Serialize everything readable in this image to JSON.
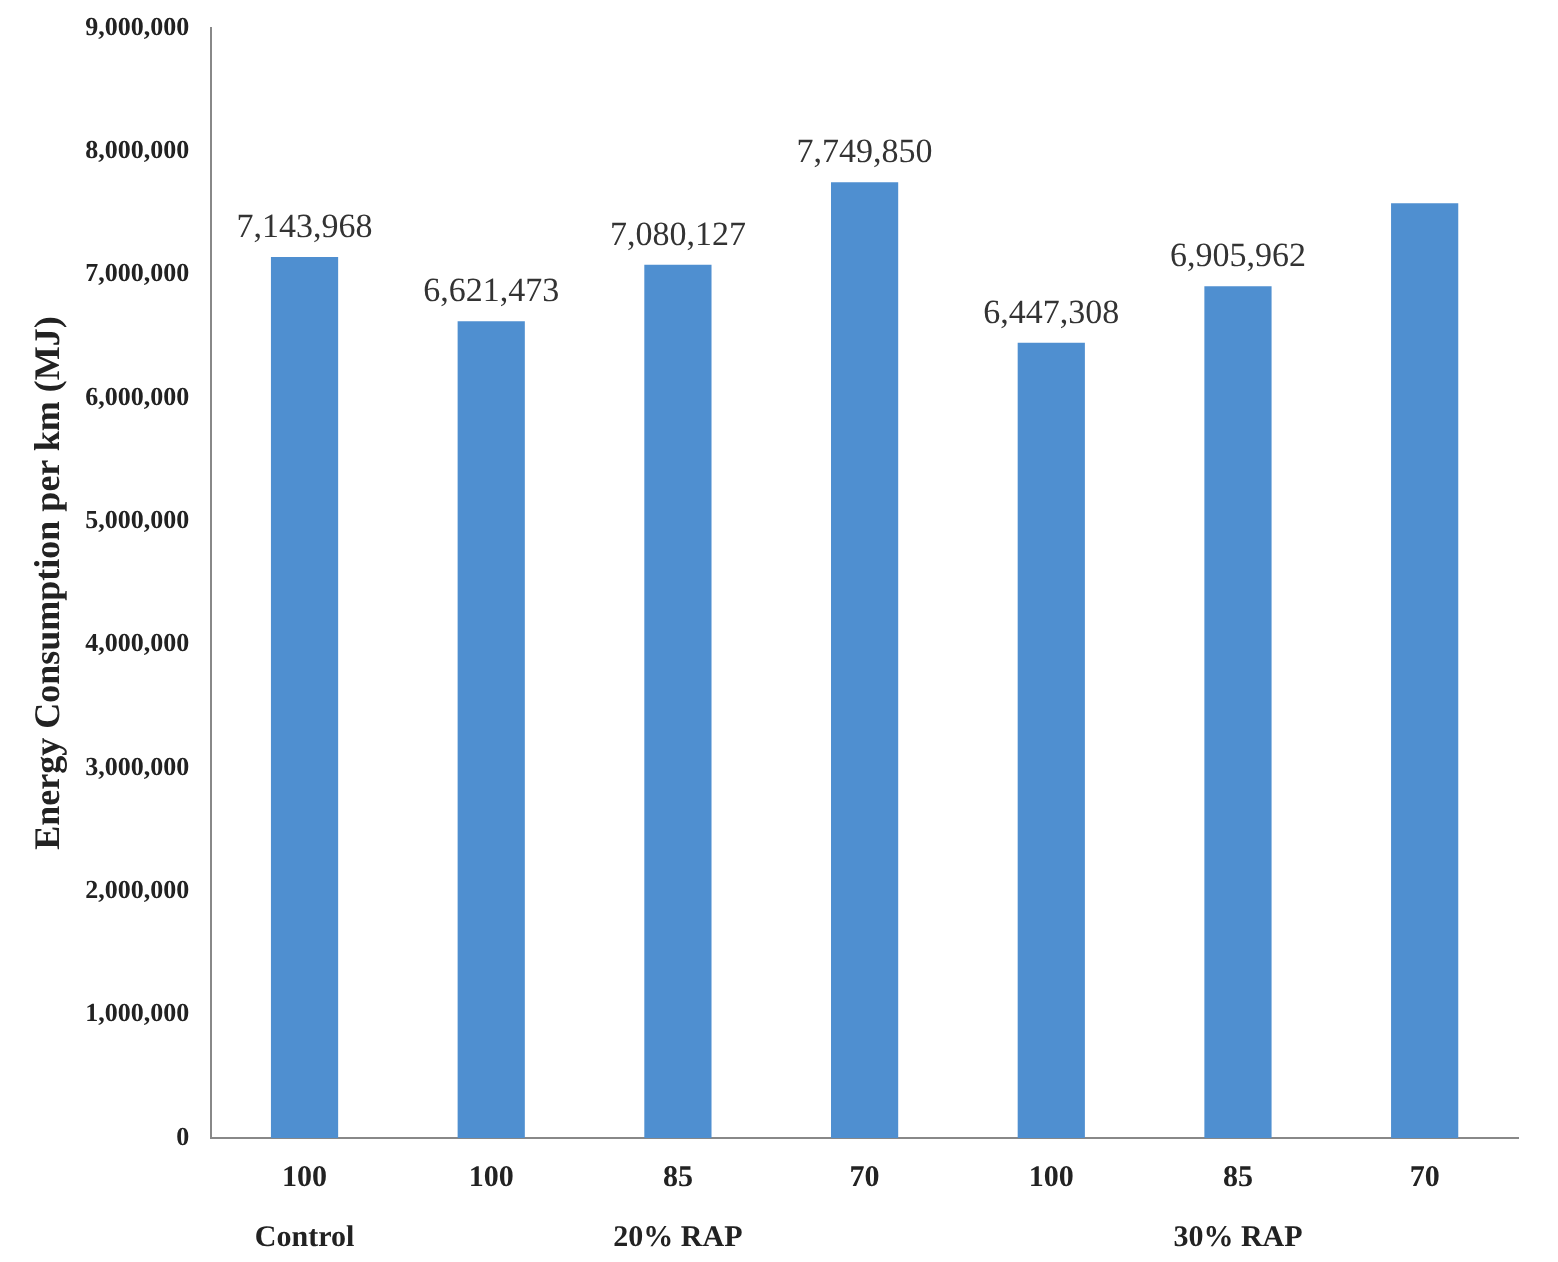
{
  "chart_data": {
    "type": "bar",
    "ylabel": "Energy Consumption per km (MJ)",
    "categories": [
      "100",
      "100",
      "85",
      "70",
      "100",
      "85",
      "70"
    ],
    "values": [
      7143968,
      6621473,
      7080127,
      7749850,
      6447308,
      6905962,
      7580000
    ],
    "value_labels": [
      "7,143,968",
      "6,621,473",
      "7,080,127",
      "7,749,850",
      "6,447,308",
      "6,905,962",
      null
    ],
    "color": "#4f8fd0",
    "ylim": [
      0,
      9000000
    ],
    "yticks": [
      0,
      {
        "value": 1000000,
        "label": "1,000,000"
      },
      {
        "value": 2000000,
        "label": "2,000,000"
      },
      {
        "value": 3000000,
        "label": "3,000,000"
      },
      {
        "value": 4000000,
        "label": "4,000,000"
      },
      {
        "value": 5000000,
        "label": "5,000,000"
      },
      {
        "value": 6000000,
        "label": "6,000,000"
      },
      {
        "value": 7000000,
        "label": "7,000,000"
      },
      {
        "value": 8000000,
        "label": "8,000,000"
      },
      {
        "value": 9000000,
        "label": "9,000,000"
      }
    ],
    "grid": false,
    "legend": false,
    "annotations": [
      "Control",
      "20% RAP",
      "30% RAP"
    ]
  }
}
